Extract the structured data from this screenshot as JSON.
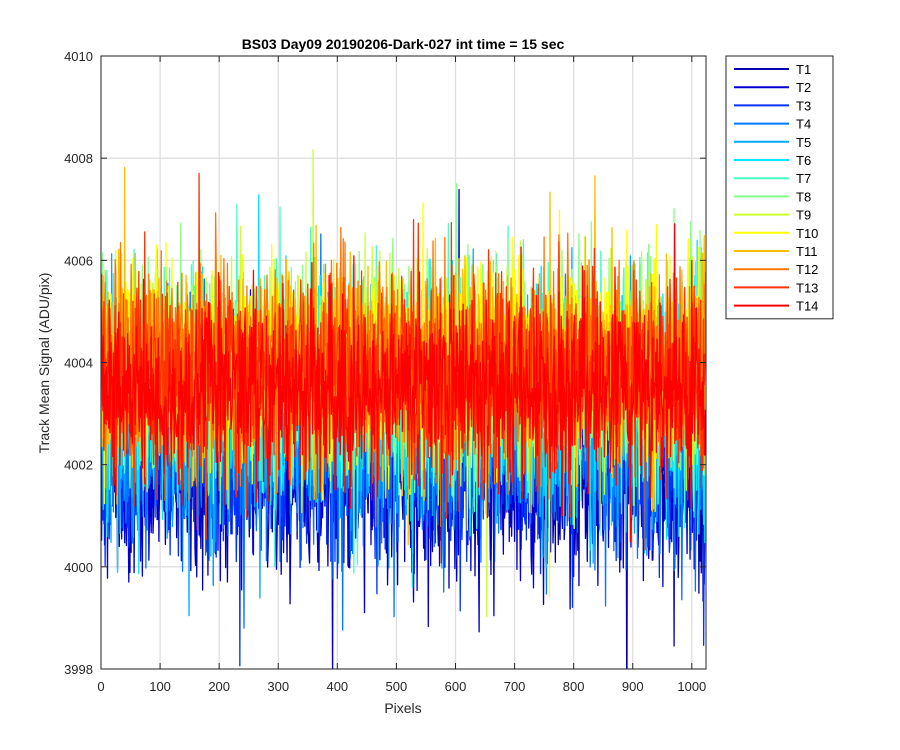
{
  "chart_data": {
    "type": "line",
    "title": "BS03 Day09 20190206-Dark-027 int time = 15 sec",
    "xlabel": "Pixels",
    "ylabel": "Track Mean Signal (ADU/pix)",
    "xlim": [
      0,
      1024
    ],
    "ylim": [
      3998,
      4010
    ],
    "xticks": [
      0,
      100,
      200,
      300,
      400,
      500,
      600,
      700,
      800,
      900,
      1000
    ],
    "yticks": [
      3998,
      4000,
      4002,
      4004,
      4006,
      4008,
      4010
    ],
    "grid": true,
    "legend_position": "outside-top-right",
    "noise_note_removed": true,
    "series": [
      {
        "name": "T1",
        "color": "#0000AA",
        "mean": 4001.9,
        "spread": 1.3
      },
      {
        "name": "T2",
        "color": "#0000D4",
        "mean": 4002.0,
        "spread": 1.3
      },
      {
        "name": "T3",
        "color": "#0033FF",
        "mean": 4002.2,
        "spread": 1.3
      },
      {
        "name": "T4",
        "color": "#0077FF",
        "mean": 4002.5,
        "spread": 1.4
      },
      {
        "name": "T5",
        "color": "#00AAFF",
        "mean": 4002.9,
        "spread": 1.4
      },
      {
        "name": "T6",
        "color": "#00E5FF",
        "mean": 4003.3,
        "spread": 1.4
      },
      {
        "name": "T7",
        "color": "#44FFC8",
        "mean": 4003.6,
        "spread": 1.4
      },
      {
        "name": "T8",
        "color": "#88FF88",
        "mean": 4003.8,
        "spread": 1.4
      },
      {
        "name": "T9",
        "color": "#CCFF33",
        "mean": 4003.9,
        "spread": 1.3
      },
      {
        "name": "T10",
        "color": "#FFFF00",
        "mean": 4004.0,
        "spread": 1.3
      },
      {
        "name": "T11",
        "color": "#FFBB00",
        "mean": 4004.0,
        "spread": 1.3
      },
      {
        "name": "T12",
        "color": "#FF7700",
        "mean": 4003.9,
        "spread": 1.3
      },
      {
        "name": "T13",
        "color": "#FF3300",
        "mean": 4003.7,
        "spread": 1.3
      },
      {
        "name": "T14",
        "color": "#FF0000",
        "mean": 4003.4,
        "spread": 1.2
      }
    ]
  }
}
